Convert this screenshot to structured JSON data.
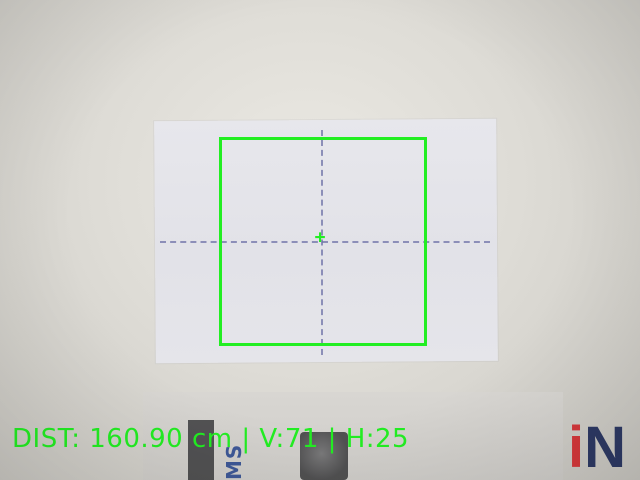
{
  "hud": {
    "readout": "DIST: 160.90 cm | V:71 | H:25"
  },
  "overlay": {
    "center_marker": "+",
    "accent_color": "#22ee22"
  },
  "background": {
    "brand_fragment_accent": "i",
    "brand_fragment_main": "N"
  }
}
